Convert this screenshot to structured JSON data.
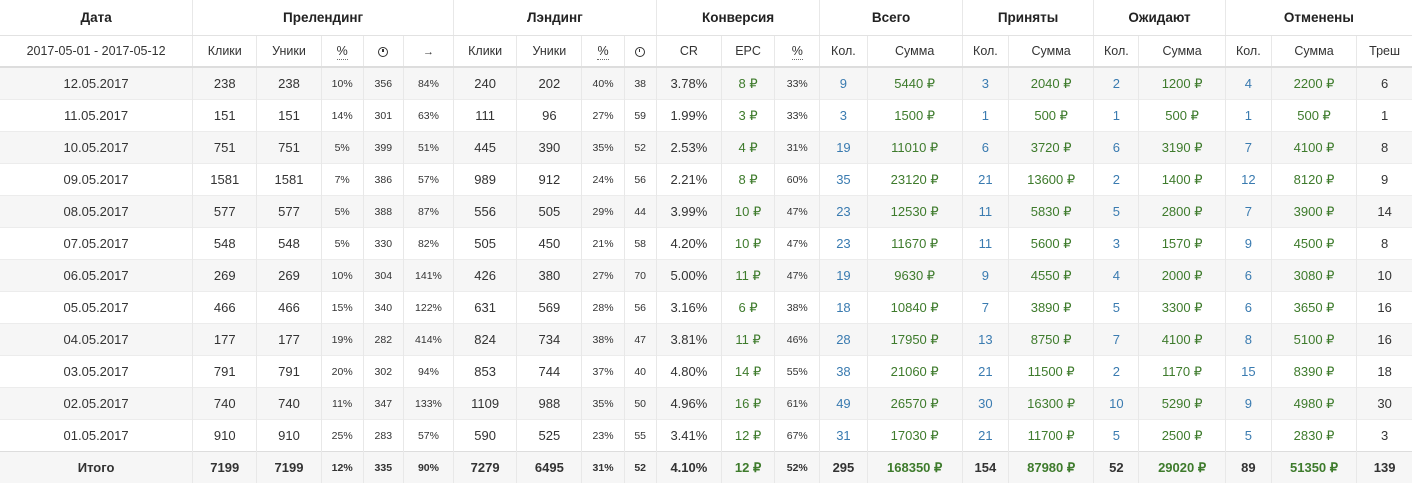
{
  "groups": {
    "date": "Дата",
    "prelanding": "Прелендинг",
    "landing": "Лэндинг",
    "conversion": "Конверсия",
    "total": "Всего",
    "accepted": "Приняты",
    "pending": "Ожидают",
    "cancelled": "Отменены"
  },
  "sub": {
    "date_range": "2017-05-01 - 2017-05-12",
    "clicks": "Клики",
    "uniques": "Уники",
    "pct": "%",
    "time_icon": "clock-icon",
    "arrow": "→",
    "cr": "CR",
    "epc": "EPC",
    "count": "Кол.",
    "sum": "Сумма",
    "trash": "Треш"
  },
  "colors": {
    "link_blue": "#3a7bb0",
    "money_green": "#3e7b2c",
    "stripe": "#f6f6f6"
  },
  "rows": [
    [
      "12.05.2017",
      "238",
      "238",
      "10%",
      "356",
      "84%",
      "240",
      "202",
      "40%",
      "38",
      "3.78%",
      "8 ₽",
      "33%",
      "9",
      "5440 ₽",
      "3",
      "2040 ₽",
      "2",
      "1200 ₽",
      "4",
      "2200 ₽",
      "6"
    ],
    [
      "11.05.2017",
      "151",
      "151",
      "14%",
      "301",
      "63%",
      "111",
      "96",
      "27%",
      "59",
      "1.99%",
      "3 ₽",
      "33%",
      "3",
      "1500 ₽",
      "1",
      "500 ₽",
      "1",
      "500 ₽",
      "1",
      "500 ₽",
      "1"
    ],
    [
      "10.05.2017",
      "751",
      "751",
      "5%",
      "399",
      "51%",
      "445",
      "390",
      "35%",
      "52",
      "2.53%",
      "4 ₽",
      "31%",
      "19",
      "11010 ₽",
      "6",
      "3720 ₽",
      "6",
      "3190 ₽",
      "7",
      "4100 ₽",
      "8"
    ],
    [
      "09.05.2017",
      "1581",
      "1581",
      "7%",
      "386",
      "57%",
      "989",
      "912",
      "24%",
      "56",
      "2.21%",
      "8 ₽",
      "60%",
      "35",
      "23120 ₽",
      "21",
      "13600 ₽",
      "2",
      "1400 ₽",
      "12",
      "8120 ₽",
      "9"
    ],
    [
      "08.05.2017",
      "577",
      "577",
      "5%",
      "388",
      "87%",
      "556",
      "505",
      "29%",
      "44",
      "3.99%",
      "10 ₽",
      "47%",
      "23",
      "12530 ₽",
      "11",
      "5830 ₽",
      "5",
      "2800 ₽",
      "7",
      "3900 ₽",
      "14"
    ],
    [
      "07.05.2017",
      "548",
      "548",
      "5%",
      "330",
      "82%",
      "505",
      "450",
      "21%",
      "58",
      "4.20%",
      "10 ₽",
      "47%",
      "23",
      "11670 ₽",
      "11",
      "5600 ₽",
      "3",
      "1570 ₽",
      "9",
      "4500 ₽",
      "8"
    ],
    [
      "06.05.2017",
      "269",
      "269",
      "10%",
      "304",
      "141%",
      "426",
      "380",
      "27%",
      "70",
      "5.00%",
      "11 ₽",
      "47%",
      "19",
      "9630 ₽",
      "9",
      "4550 ₽",
      "4",
      "2000 ₽",
      "6",
      "3080 ₽",
      "10"
    ],
    [
      "05.05.2017",
      "466",
      "466",
      "15%",
      "340",
      "122%",
      "631",
      "569",
      "28%",
      "56",
      "3.16%",
      "6 ₽",
      "38%",
      "18",
      "10840 ₽",
      "7",
      "3890 ₽",
      "5",
      "3300 ₽",
      "6",
      "3650 ₽",
      "16"
    ],
    [
      "04.05.2017",
      "177",
      "177",
      "19%",
      "282",
      "414%",
      "824",
      "734",
      "38%",
      "47",
      "3.81%",
      "11 ₽",
      "46%",
      "28",
      "17950 ₽",
      "13",
      "8750 ₽",
      "7",
      "4100 ₽",
      "8",
      "5100 ₽",
      "16"
    ],
    [
      "03.05.2017",
      "791",
      "791",
      "20%",
      "302",
      "94%",
      "853",
      "744",
      "37%",
      "40",
      "4.80%",
      "14 ₽",
      "55%",
      "38",
      "21060 ₽",
      "21",
      "11500 ₽",
      "2",
      "1170 ₽",
      "15",
      "8390 ₽",
      "18"
    ],
    [
      "02.05.2017",
      "740",
      "740",
      "11%",
      "347",
      "133%",
      "1109",
      "988",
      "35%",
      "50",
      "4.96%",
      "16 ₽",
      "61%",
      "49",
      "26570 ₽",
      "30",
      "16300 ₽",
      "10",
      "5290 ₽",
      "9",
      "4980 ₽",
      "30"
    ],
    [
      "01.05.2017",
      "910",
      "910",
      "25%",
      "283",
      "57%",
      "590",
      "525",
      "23%",
      "55",
      "3.41%",
      "12 ₽",
      "67%",
      "31",
      "17030 ₽",
      "21",
      "11700 ₽",
      "5",
      "2500 ₽",
      "5",
      "2830 ₽",
      "3"
    ]
  ],
  "total": [
    "Итого",
    "7199",
    "7199",
    "12%",
    "335",
    "90%",
    "7279",
    "6495",
    "31%",
    "52",
    "4.10%",
    "12 ₽",
    "52%",
    "295",
    "168350 ₽",
    "154",
    "87980 ₽",
    "52",
    "29020 ₽",
    "89",
    "51350 ₽",
    "139"
  ]
}
